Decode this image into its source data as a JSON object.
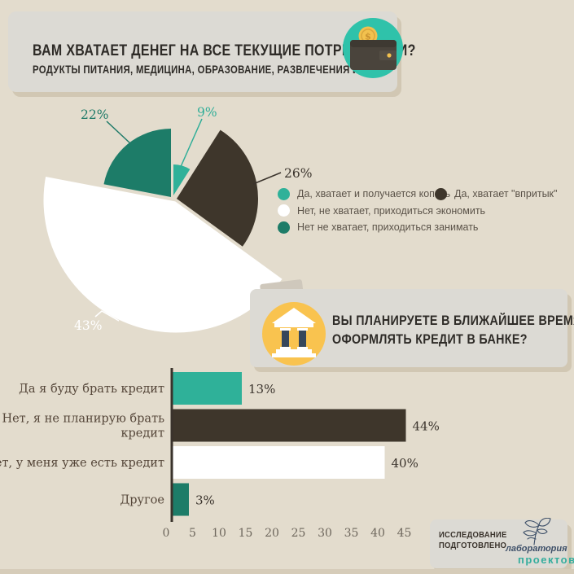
{
  "page": {
    "background": "#e3dccd",
    "card_color": "#dcdad4"
  },
  "q1": {
    "title": "ВАМ ХВАТАЕТ ДЕНЕГ НА ВСЕ ТЕКУЩИЕ ПОТРЕБНОСТИ?",
    "subtitle": "РОДУКТЫ ПИТАНИЯ, МЕДИЦИНА, ОБРАЗОВАНИЕ, РАЗВЛЕЧЕНИЯ И Т.Д.",
    "icon": "wallet-coin-icon",
    "icon_bg": "#2fc2aa"
  },
  "q2": {
    "line1": "ВЫ ПЛАНИРУЕТЕ В БЛИЖАЙШЕЕ ВРЕМЯ",
    "line2": "ОФОРМЛЯТЬ КРЕДИТ В БАНКЕ?",
    "icon": "bank-icon",
    "icon_bg": "#f9c34f"
  },
  "footer": {
    "line1": "ИССЛЕДОВАНИЕ",
    "line2": "ПОДГОТОВЛЕНО",
    "logo_icon": "plant-sketch-logo",
    "logo_top": "лаборатория",
    "logo_bottom": "проектов",
    "logo_top_color": "#3d4f68",
    "logo_bottom_color": "#35ad9d"
  },
  "chart_data": [
    {
      "type": "pie",
      "title": "ВАМ ХВАТАЕТ ДЕНЕГ НА ВСЕ ТЕКУЩИЕ ПОТРЕБНОСТИ?",
      "slices": [
        {
          "label": "Да, хватает и получается копить",
          "value": 9,
          "pct_label": "9%",
          "color": "#2fb199",
          "pct_color": "#2fae98"
        },
        {
          "label": "Да, хватает \"впритык\"",
          "value": 26,
          "pct_label": "26%",
          "color": "#3e362b",
          "pct_color": "#3a332c"
        },
        {
          "label": "Нет, не хватает, приходиться экономить",
          "value": 43,
          "pct_label": "43%",
          "color": "#ffffff",
          "pct_color": "#ffffff"
        },
        {
          "label": "Нет не хватает, приходиться занимать",
          "value": 22,
          "pct_label": "22%",
          "color": "#1d7c68",
          "pct_color": "#1e7a68"
        }
      ],
      "start_angle_deg": 0,
      "clockwise": true,
      "legend_position": "right",
      "style": "exploded"
    },
    {
      "type": "bar",
      "orientation": "horizontal",
      "title": "ВЫ ПЛАНИРУЕТЕ В БЛИЖАЙШЕЕ ВРЕМЯ ОФОРМЛЯТЬ КРЕДИТ В БАНКЕ?",
      "categories": [
        [
          "Да я буду брать кредит"
        ],
        [
          "Нет, я не планирую брать",
          "кредит"
        ],
        [
          "Нет, у меня уже есть кредит"
        ],
        [
          "Другое"
        ]
      ],
      "values": [
        13,
        44,
        40,
        3
      ],
      "value_labels": [
        "13%",
        "44%",
        "40%",
        "3%"
      ],
      "colors": [
        "#2fb199",
        "#3e362b",
        "#ffffff",
        "#1d7c68"
      ],
      "x_ticks": [
        0,
        5,
        10,
        15,
        20,
        25,
        30,
        35,
        40,
        45
      ],
      "xlim": [
        0,
        45
      ],
      "grid": false,
      "axis_color": "#3a332c",
      "tick_color": "#6e675d",
      "category_color": "#554639"
    }
  ]
}
